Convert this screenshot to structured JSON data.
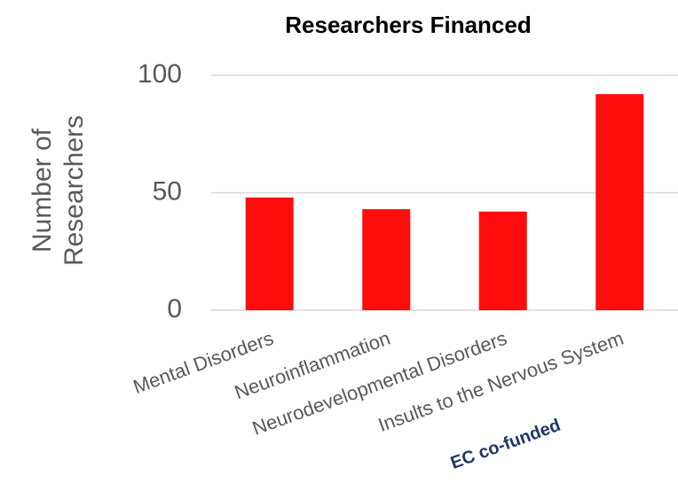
{
  "chart_data": {
    "type": "bar",
    "title": "Researchers Financed",
    "y_label": "Number of Researchers",
    "categories": [
      "Mental Disorders",
      "Neuroinflammation",
      "Neurodevelopmental Disorders",
      "Insults to the Nervous System"
    ],
    "values": [
      48,
      43,
      42,
      92
    ],
    "color": "#ff0d0d",
    "ylim": [
      0,
      100
    ],
    "yticks": [
      0,
      50,
      100
    ],
    "grid": true,
    "annotation": "EC co-funded"
  }
}
